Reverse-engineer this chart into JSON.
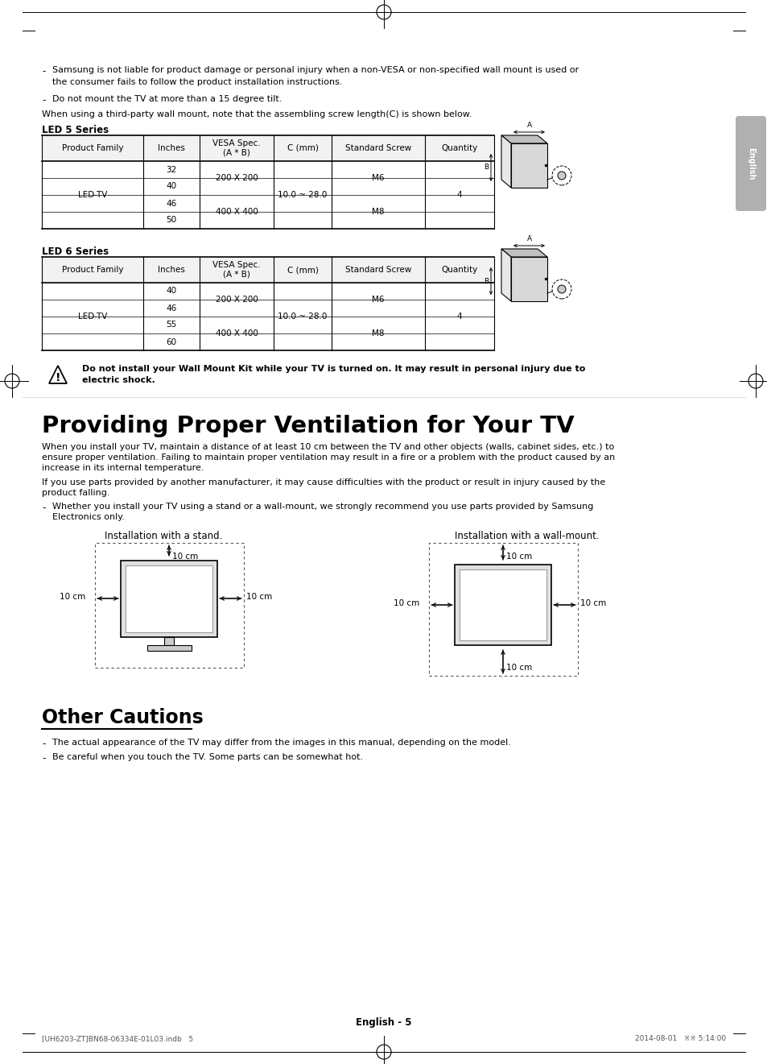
{
  "page_bg": "#ffffff",
  "bullet1_line1": "Samsung is not liable for product damage or personal injury when a non-VESA or non-specified wall mount is used or",
  "bullet1_line2": "the consumer fails to follow the product installation instructions.",
  "bullet2": "Do not mount the TV at more than a 15 degree tilt.",
  "intro_text": "When using a third-party wall mount, note that the assembling screw length(C) is shown below.",
  "led5_label": "LED 5 Series",
  "led6_label": "LED 6 Series",
  "table_headers": [
    "Product Family",
    "Inches",
    "VESA Spec.\n(A * B)",
    "C (mm)",
    "Standard Screw",
    "Quantity"
  ],
  "led5_rows_inches": [
    "32",
    "40",
    "46",
    "50"
  ],
  "led5_vesa": [
    "200 X 200",
    "400 X 400"
  ],
  "led5_c": "10.0 ~ 28.0",
  "led5_screw": [
    "M6",
    "M8"
  ],
  "led5_qty": "4",
  "led5_product": "LED-TV",
  "led6_rows_inches": [
    "40",
    "46",
    "55",
    "60"
  ],
  "led6_vesa": [
    "200 X 200",
    "400 X 400"
  ],
  "led6_c": "10.0 ~ 28.0",
  "led6_screw": [
    "M6",
    "M8"
  ],
  "led6_qty": "4",
  "led6_product": "LED-TV",
  "warning_line1": "Do not install your Wall Mount Kit while your TV is turned on. It may result in personal injury due to",
  "warning_line2": "electric shock.",
  "section_title": "Providing Proper Ventilation for Your TV",
  "para1_line1": "When you install your TV, maintain a distance of at least 10 cm between the TV and other objects (walls, cabinet sides, etc.) to",
  "para1_line2": "ensure proper ventilation. Failing to maintain proper ventilation may result in a fire or a problem with the product caused by an",
  "para1_line3": "increase in its internal temperature.",
  "para2_line1": "If you use parts provided by another manufacturer, it may cause difficulties with the product or result in injury caused by the",
  "para2_line2": "product falling.",
  "bullet3_line1": "Whether you install your TV using a stand or a wall-mount, we strongly recommend you use parts provided by Samsung",
  "bullet3_line2": "Electronics only.",
  "install_stand_label": "Installation with a stand.",
  "install_wall_label": "Installation with a wall-mount.",
  "section2_title": "Other Cautions",
  "caution1": "The actual appearance of the TV may differ from the images in this manual, depending on the model.",
  "caution2": "Be careful when you touch the TV. Some parts can be somewhat hot.",
  "footer_text": "English - 5",
  "footer_left": "[UH6203-ZT]BN68-06334E-01L03.indb   5",
  "footer_right": "2014-08-01   ※※ 5:14:00",
  "tab_text": "English",
  "tab_color": "#aaaaaa"
}
